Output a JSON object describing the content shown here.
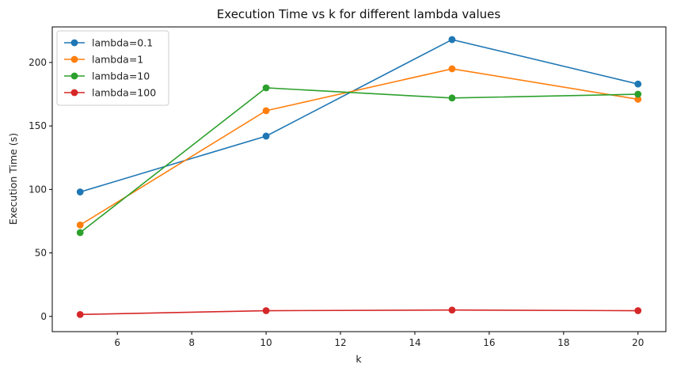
{
  "chart_data": {
    "type": "line",
    "title": "Execution Time vs k for different lambda values",
    "xlabel": "k",
    "ylabel": "Execution Time (s)",
    "x": [
      5,
      10,
      15,
      20
    ],
    "xlim": [
      4.25,
      20.75
    ],
    "ylim": [
      -12,
      228
    ],
    "xticks": [
      6,
      8,
      10,
      12,
      14,
      16,
      18,
      20
    ],
    "yticks": [
      0,
      50,
      100,
      150,
      200
    ],
    "grid": false,
    "legend_position": "upper left",
    "series": [
      {
        "name": "lambda=0.1",
        "color": "#1f77b4",
        "values": [
          98,
          142,
          218,
          183
        ]
      },
      {
        "name": "lambda=1",
        "color": "#ff7f0e",
        "values": [
          72,
          162,
          195,
          171
        ]
      },
      {
        "name": "lambda=10",
        "color": "#2ca02c",
        "values": [
          66,
          180,
          172,
          175
        ]
      },
      {
        "name": "lambda=100",
        "color": "#d62728",
        "values": [
          1.5,
          4.5,
          5,
          4.5
        ]
      }
    ]
  }
}
